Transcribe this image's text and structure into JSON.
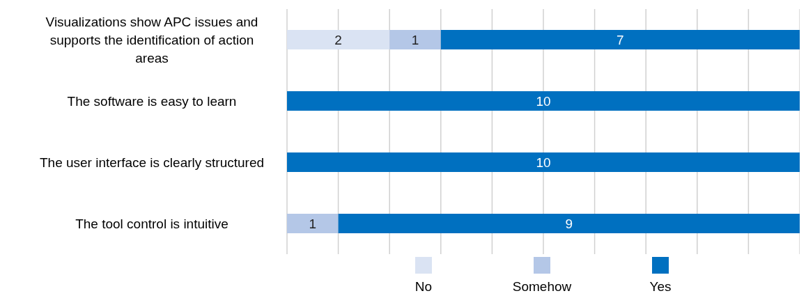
{
  "chart_data": {
    "type": "bar",
    "orientation": "horizontal",
    "stacked": true,
    "categories": [
      "Visualizations show APC issues and supports the identification of action areas",
      "The software is easy to learn",
      "The user interface is clearly structured",
      "The tool control is intuitive"
    ],
    "series": [
      {
        "name": "No",
        "color": "#dae3f3",
        "values": [
          2,
          null,
          null,
          null
        ]
      },
      {
        "name": "Somehow",
        "color": "#b4c7e7",
        "values": [
          1,
          null,
          null,
          1
        ]
      },
      {
        "name": "Yes",
        "color": "#0070c0",
        "values": [
          7,
          10,
          10,
          9
        ]
      }
    ],
    "xlim": [
      0,
      10
    ],
    "xticks": [
      {
        "value": 0,
        "label": null
      },
      {
        "value": 1,
        "label": null
      },
      {
        "value": 2,
        "label": null
      },
      {
        "value": 3,
        "label": null
      },
      {
        "value": 4,
        "label": null
      },
      {
        "value": 5,
        "label": null
      },
      {
        "value": 6,
        "label": null
      },
      {
        "value": 7,
        "label": null
      },
      {
        "value": 8,
        "label": null
      },
      {
        "value": 9,
        "label": null
      },
      {
        "value": 10,
        "label": null
      }
    ],
    "tick_labels": "y",
    "grid": "x",
    "data_labels": true,
    "legend": "bottom"
  }
}
